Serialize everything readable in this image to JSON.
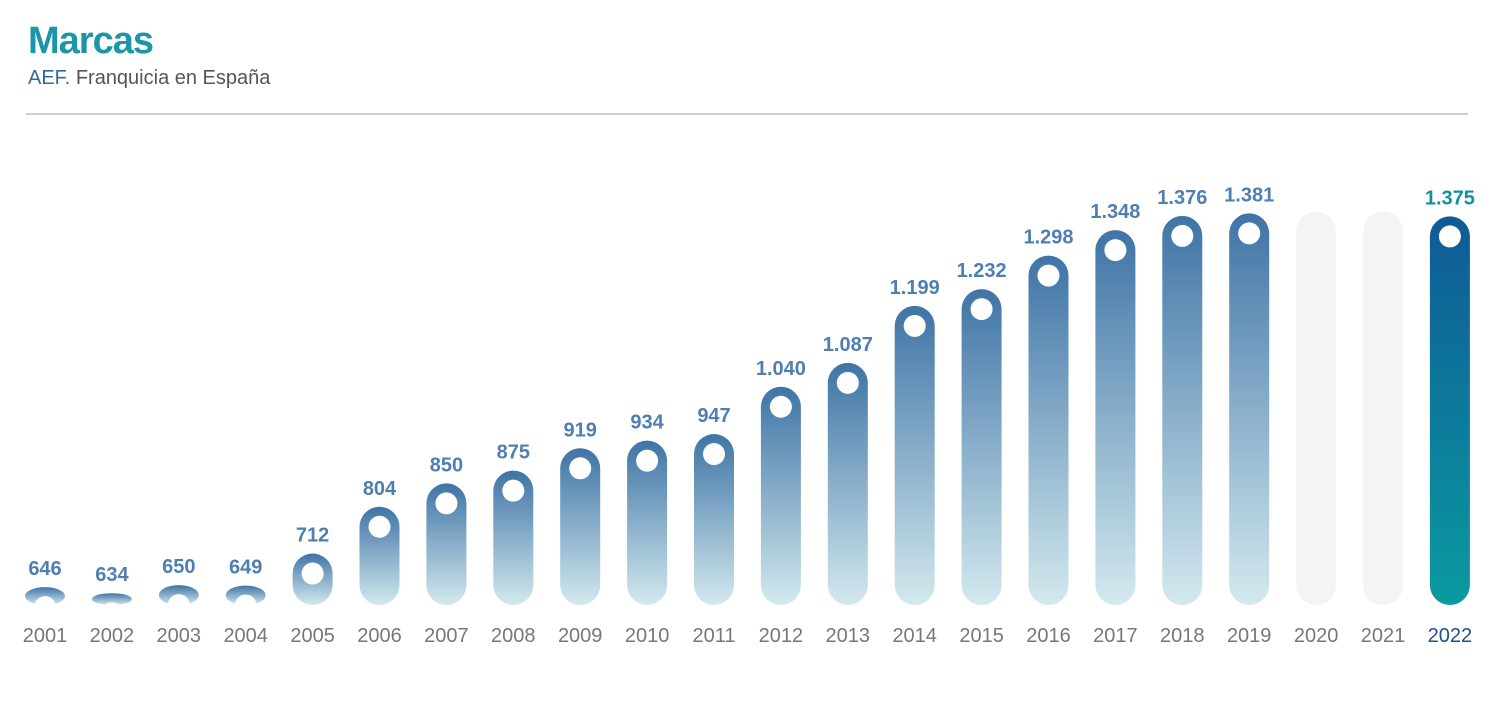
{
  "header": {
    "title": "Marcas",
    "source": "AEF.",
    "subtitle": "Franquicia en España"
  },
  "colors": {
    "title": "#1a96a8",
    "bar_top": "#3f74a6",
    "bar_bottom": "#d3e9ee",
    "value_label": "#4f7fb0",
    "year_label": "#777777",
    "empty_bar": "#f4f4f4",
    "highlight_top": "#0f5a96",
    "highlight_bottom": "#0a9aa0",
    "highlight_value": "#12909f",
    "highlight_year": "#1f4f8c"
  },
  "chart_data": {
    "type": "bar",
    "title": "Marcas",
    "subtitle": "AEF. Franquicia en España",
    "categories": [
      "2001",
      "2002",
      "2003",
      "2004",
      "2005",
      "2006",
      "2007",
      "2008",
      "2009",
      "2010",
      "2011",
      "2012",
      "2013",
      "2014",
      "2015",
      "2016",
      "2017",
      "2018",
      "2019",
      "2020",
      "2021",
      "2022"
    ],
    "values": [
      646,
      634,
      650,
      649,
      712,
      804,
      850,
      875,
      919,
      934,
      947,
      1040,
      1087,
      1199,
      1232,
      1298,
      1348,
      1376,
      1381,
      null,
      null,
      1375
    ],
    "value_labels": [
      "646",
      "634",
      "650",
      "649",
      "712",
      "804",
      "850",
      "875",
      "919",
      "934",
      "947",
      "1.040",
      "1.087",
      "1.199",
      "1.232",
      "1.298",
      "1.348",
      "1.376",
      "1.381",
      "",
      "",
      "1.375"
    ],
    "highlight_category": "2022",
    "ylim": [
      0,
      1400
    ],
    "grid": false,
    "legend": "none"
  }
}
